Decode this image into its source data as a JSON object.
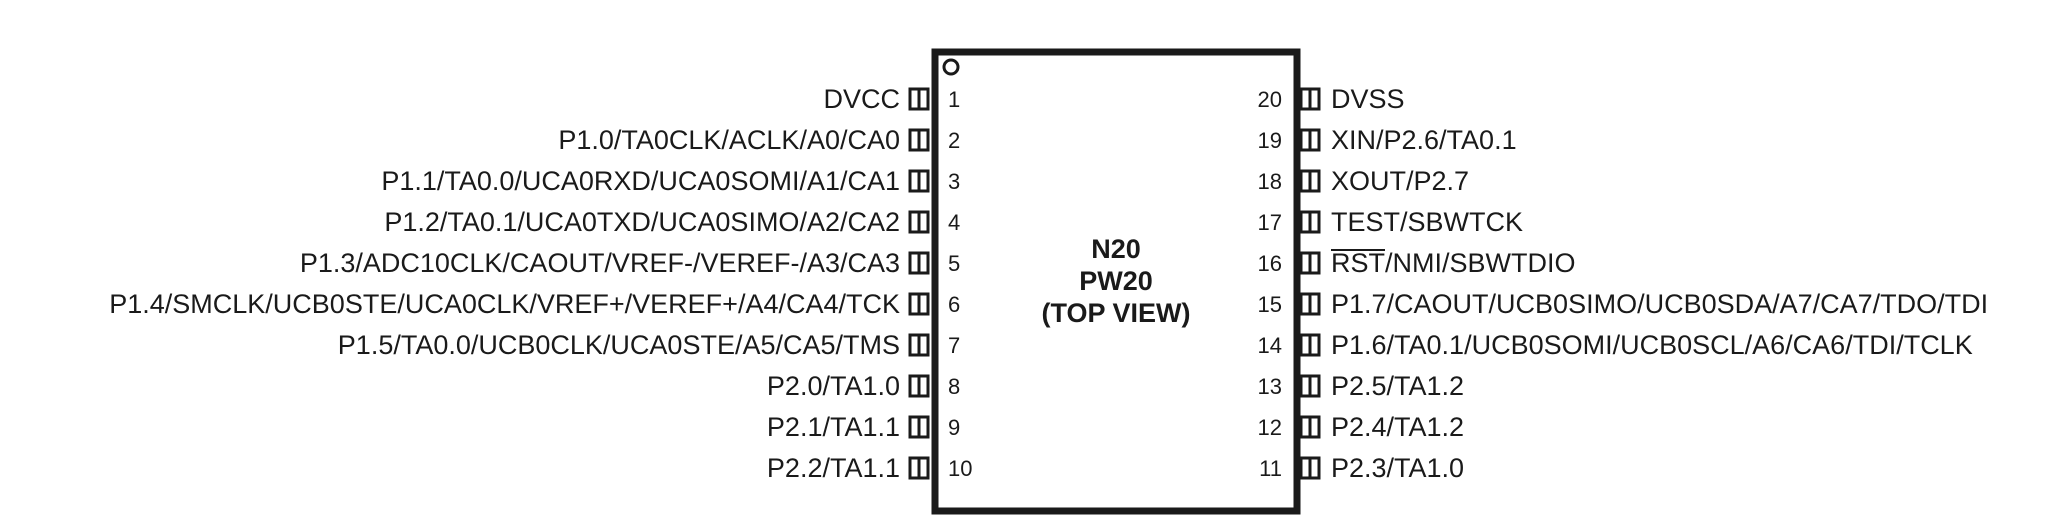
{
  "package": {
    "title_lines": [
      "N20",
      "PW20",
      "(TOP VIEW)"
    ]
  },
  "pins": [
    {
      "number": "1",
      "name": "DVCC"
    },
    {
      "number": "2",
      "name": "P1.0/TA0CLK/ACLK/A0/CA0"
    },
    {
      "number": "3",
      "name": "P1.1/TA0.0/UCA0RXD/UCA0SOMI/A1/CA1"
    },
    {
      "number": "4",
      "name": "P1.2/TA0.1/UCA0TXD/UCA0SIMO/A2/CA2"
    },
    {
      "number": "5",
      "name": "P1.3/ADC10CLK/CAOUT/VREF-/VEREF-/A3/CA3"
    },
    {
      "number": "6",
      "name": "P1.4/SMCLK/UCB0STE/UCA0CLK/VREF+/VEREF+/A4/CA4/TCK"
    },
    {
      "number": "7",
      "name": "P1.5/TA0.0/UCB0CLK/UCA0STE/A5/CA5/TMS"
    },
    {
      "number": "8",
      "name": "P2.0/TA1.0"
    },
    {
      "number": "9",
      "name": "P2.1/TA1.1"
    },
    {
      "number": "10",
      "name": "P2.2/TA1.1"
    },
    {
      "number": "11",
      "name": "P2.3/TA1.0"
    },
    {
      "number": "12",
      "name": "P2.4/TA1.2"
    },
    {
      "number": "13",
      "name": "P2.5/TA1.2"
    },
    {
      "number": "14",
      "name": "P1.6/TA0.1/UCB0SOMI/UCB0SCL/A6/CA6/TDI/TCLK"
    },
    {
      "number": "15",
      "name": "P1.7/CAOUT/UCB0SIMO/UCB0SDA/A7/CA7/TDO/TDI"
    },
    {
      "number": "16",
      "name": "RST/NMI/SBWTDIO",
      "overline_prefix": "RST",
      "name_rest": "/NMI/SBWTDIO"
    },
    {
      "number": "17",
      "name": "TEST/SBWTCK"
    },
    {
      "number": "18",
      "name": "XOUT/P2.7"
    },
    {
      "number": "19",
      "name": "XIN/P2.6/TA0.1"
    },
    {
      "number": "20",
      "name": "DVSS"
    }
  ]
}
